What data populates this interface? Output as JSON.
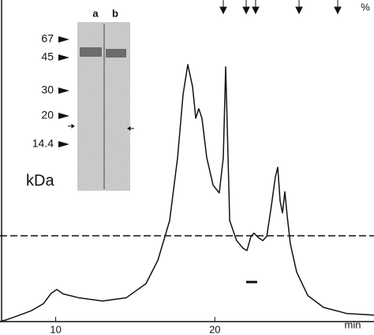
{
  "chart_data": {
    "type": "line",
    "xlabel": "min",
    "ylabel": "%",
    "x": [
      6.5,
      7.0,
      7.99,
      8.48,
      9.23,
      9.72,
      10.07,
      10.47,
      11.46,
      12.95,
      14.43,
      15.67,
      16.42,
      17.16,
      17.66,
      18.0,
      18.3,
      18.6,
      18.8,
      18.99,
      19.19,
      19.49,
      19.89,
      20.28,
      20.53,
      20.68,
      20.78,
      20.93,
      21.37,
      21.77,
      22.02,
      22.27,
      22.46,
      22.76,
      23.01,
      23.26,
      23.56,
      23.8,
      23.95,
      24.1,
      24.25,
      24.4,
      24.55,
      24.75,
      25.14,
      25.84,
      26.83,
      28.31,
      30
    ],
    "series": [
      {
        "color": "#111111",
        "values": [
          0,
          0.7,
          2.5,
          3.4,
          5.6,
          8.8,
          10,
          8.6,
          7.4,
          6.4,
          7.4,
          11.8,
          19.1,
          31.4,
          51,
          70.6,
          79.9,
          73,
          63.2,
          66.2,
          63.2,
          51,
          42.4,
          40,
          51,
          79.2,
          60.8,
          31.4,
          25.2,
          22.8,
          22.1,
          26.5,
          27.5,
          26,
          25.2,
          26.5,
          36.3,
          44.9,
          48,
          37.5,
          33.8,
          40.4,
          32.6,
          24,
          15.4,
          8.1,
          4.4,
          2.5,
          2
        ]
      }
    ],
    "reference_line": 26.7,
    "arrow_markers": [
      20.53,
      21.97,
      22.56,
      25.29,
      27.72
    ],
    "fraction_bar": {
      "x": [
        21.97,
        22.66
      ],
      "y": 12.3
    },
    "xlim": [
      6.5,
      30
    ],
    "ylim": [
      0,
      100
    ],
    "xticks": [
      10,
      20
    ],
    "gel": {
      "lanes": [
        "a",
        "b"
      ],
      "markers": [
        "67",
        "45",
        "30",
        "20",
        "14.4"
      ],
      "unit": "kDa"
    }
  }
}
